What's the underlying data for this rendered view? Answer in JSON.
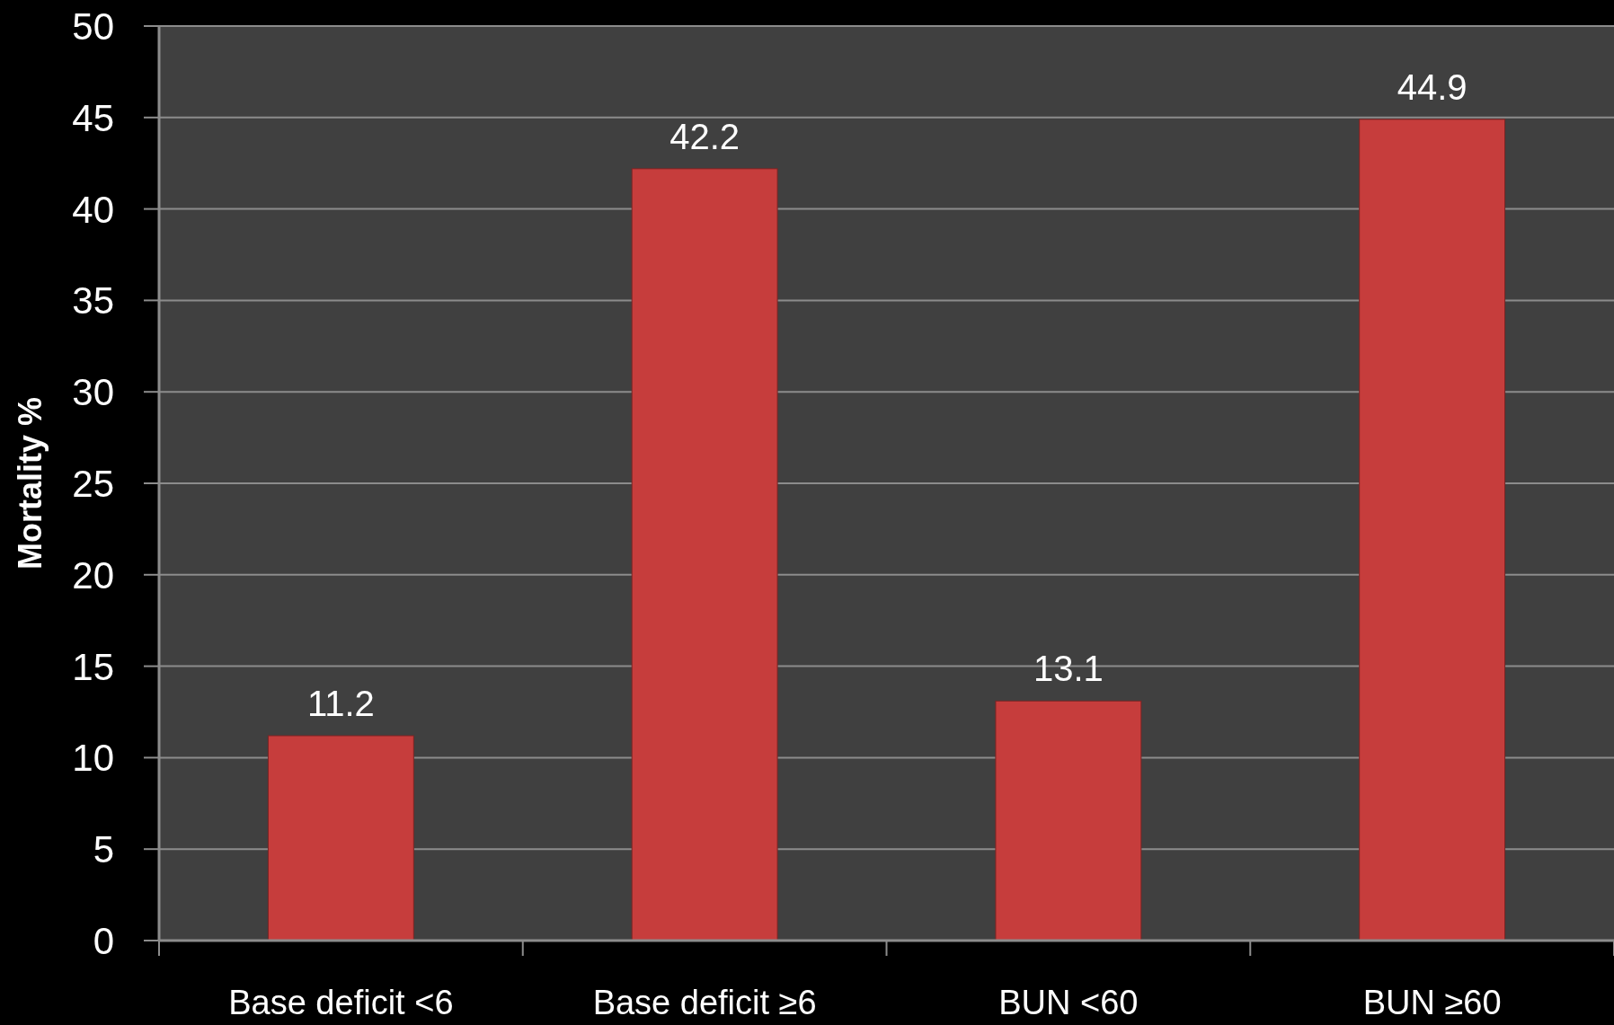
{
  "chart_data": {
    "type": "bar",
    "ylabel": "Mortality %",
    "categories": [
      "Base deficit <6",
      "Base deficit ≥6",
      "BUN <60",
      "BUN ≥60"
    ],
    "values": [
      11.2,
      42.2,
      13.1,
      44.9
    ],
    "color": "#c63d3c",
    "ylim": [
      0,
      50
    ],
    "yticks": [
      0,
      5,
      10,
      15,
      20,
      25,
      30,
      35,
      40,
      45,
      50
    ],
    "grid": "y",
    "data_labels": true
  }
}
